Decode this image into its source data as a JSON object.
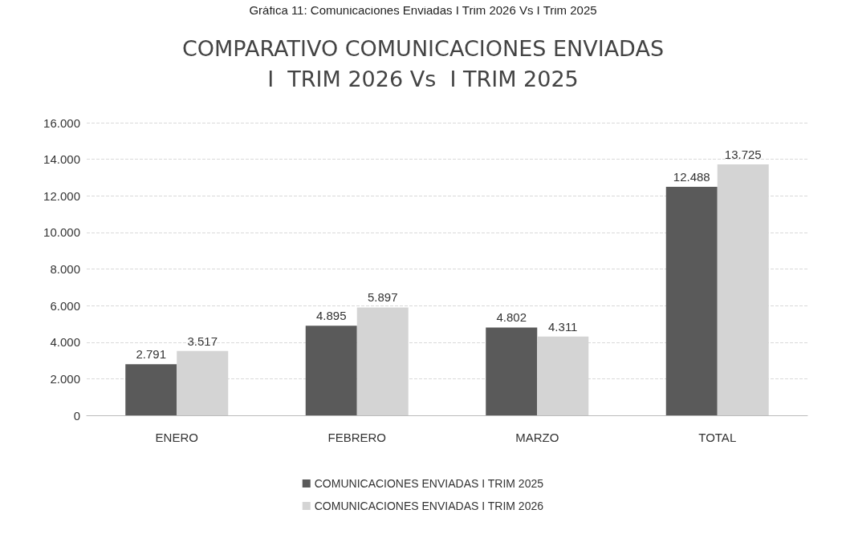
{
  "chart_data": {
    "type": "bar",
    "subtitle": "Gráfica 11: Comunicaciones Enviadas I Trim 2026 Vs I Trim 2025",
    "title": "COMPARATIVO COMUNICACIONES ENVIADAS\nI  TRIM 2026 Vs  I TRIM 2025",
    "categories": [
      "ENERO",
      "FEBRERO",
      "MARZO",
      "TOTAL"
    ],
    "series": [
      {
        "name": "COMUNICACIONES ENVIADAS I TRIM 2025",
        "color": "#5a5a5a",
        "values": [
          2791,
          4895,
          4802,
          12488
        ],
        "value_labels": [
          "2.791",
          "4.895",
          "4.802",
          "12.488"
        ]
      },
      {
        "name": "COMUNICACIONES ENVIADAS I TRIM 2026",
        "color": "#d4d4d4",
        "values": [
          3517,
          5897,
          4311,
          13725
        ],
        "value_labels": [
          "3.517",
          "5.897",
          "4.311",
          "13.725"
        ]
      }
    ],
    "ylim": [
      0,
      16000
    ],
    "yticks": [
      0,
      {
        "value": 2000,
        "label": "2.000"
      },
      {
        "value": 4000,
        "label": "4.000"
      },
      {
        "value": 6000,
        "label": "6.000"
      },
      {
        "value": 8000,
        "label": "8.000"
      },
      {
        "value": 10000,
        "label": "10.000"
      },
      {
        "value": 12000,
        "label": "12.000"
      },
      {
        "value": 14000,
        "label": "14.000"
      },
      {
        "value": 16000,
        "label": "16.000"
      }
    ],
    "grid": "y",
    "legend": "bottom"
  }
}
